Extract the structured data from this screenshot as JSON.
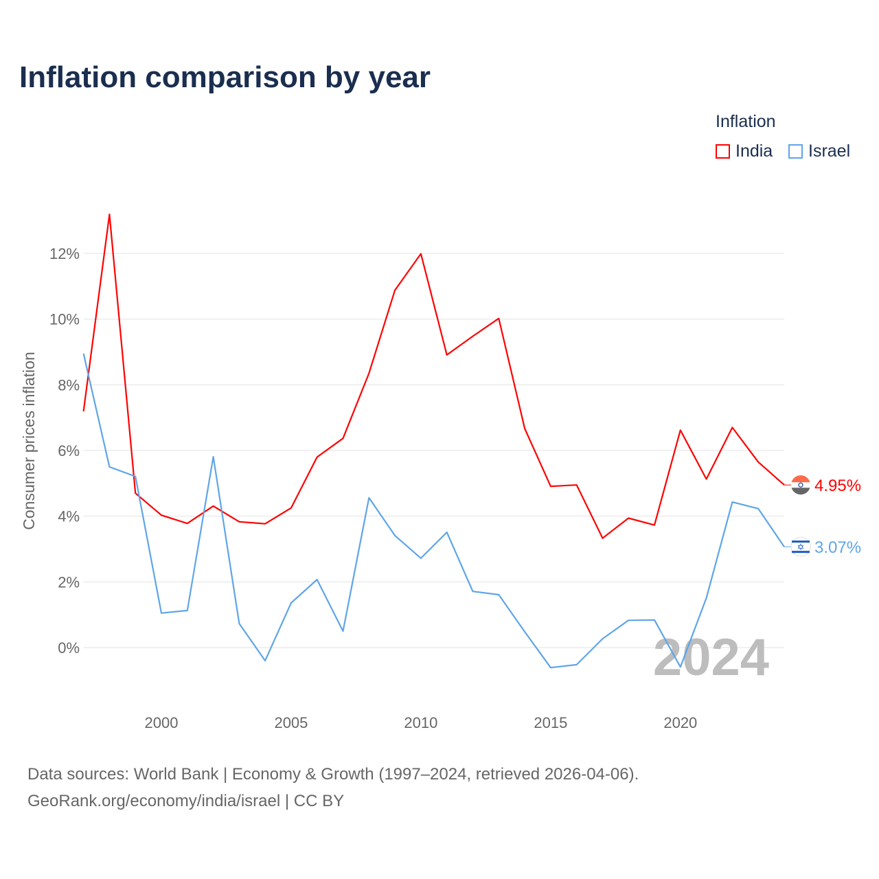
{
  "chart_data": {
    "type": "line",
    "title": "Inflation comparison by year",
    "ylabel": "Consumer prices inflation",
    "xlabel": "",
    "legend_title": "Inflation",
    "legend_placement": "top-right",
    "x": [
      1997,
      1998,
      1999,
      2000,
      2001,
      2002,
      2003,
      2004,
      2005,
      2006,
      2007,
      2008,
      2009,
      2010,
      2011,
      2012,
      2013,
      2014,
      2015,
      2016,
      2017,
      2018,
      2019,
      2020,
      2021,
      2022,
      2023,
      2024
    ],
    "series": [
      {
        "name": "India",
        "color": "#ff0000",
        "end_label": "4.95%",
        "values": [
          7.19,
          13.19,
          4.7,
          4.03,
          3.78,
          4.31,
          3.83,
          3.77,
          4.25,
          5.8,
          6.37,
          8.35,
          10.88,
          11.99,
          8.91,
          9.48,
          10.02,
          6.67,
          4.91,
          4.95,
          3.33,
          3.94,
          3.73,
          6.62,
          5.13,
          6.7,
          5.65,
          4.95
        ]
      },
      {
        "name": "Israel",
        "color": "#5ea5e8",
        "end_label": "3.07%",
        "values": [
          8.95,
          5.5,
          5.21,
          1.05,
          1.13,
          5.81,
          0.73,
          -0.4,
          1.36,
          2.07,
          0.5,
          4.56,
          3.41,
          2.72,
          3.51,
          1.71,
          1.61,
          0.48,
          -0.61,
          -0.52,
          0.27,
          0.83,
          0.84,
          -0.59,
          1.51,
          4.43,
          4.23,
          3.07
        ]
      }
    ],
    "xlim": [
      1997,
      2024
    ],
    "ylim": [
      -1.5,
      13.5
    ],
    "x_ticks": [
      {
        "v": 2000,
        "label": "2000"
      },
      {
        "v": 2005,
        "label": "2005"
      },
      {
        "v": 2010,
        "label": "2010"
      },
      {
        "v": 2015,
        "label": "2015"
      },
      {
        "v": 2020,
        "label": "2020"
      }
    ],
    "y_ticks": [
      {
        "v": 0,
        "label": "0%"
      },
      {
        "v": 2,
        "label": "2%"
      },
      {
        "v": 4,
        "label": "4%"
      },
      {
        "v": 6,
        "label": "6%"
      },
      {
        "v": 8,
        "label": "8%"
      },
      {
        "v": 10,
        "label": "10%"
      },
      {
        "v": 12,
        "label": "12%"
      }
    ],
    "grid": true,
    "watermark_year": "2024"
  },
  "source_line1": "Data sources: World Bank | Economy & Growth (1997–2024, retrieved 2026-04-06).",
  "source_line2": "GeoRank.org/economy/india/israel | CC BY"
}
